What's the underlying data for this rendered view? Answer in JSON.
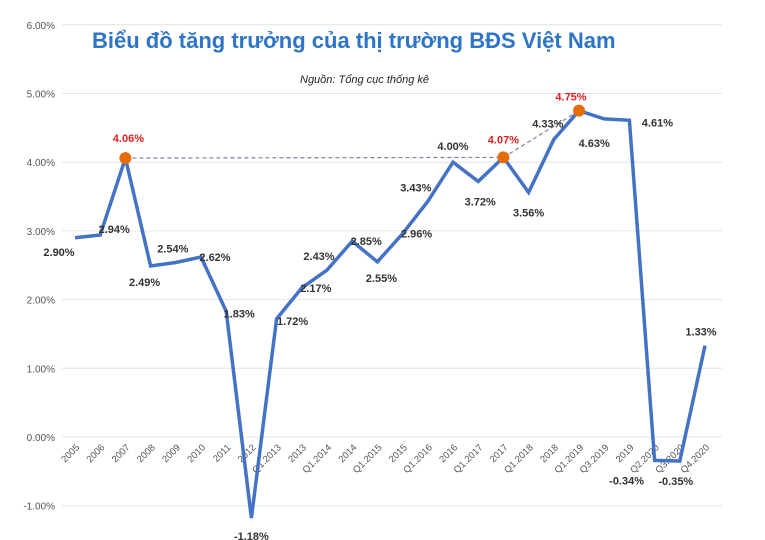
{
  "chart_data": {
    "type": "line",
    "title": "Biểu đồ tăng trưởng của thị trường BĐS Việt Nam",
    "subtitle": "Nguồn: Tổng cục thống kê",
    "xlabel": "",
    "ylabel": "",
    "ylim": [
      -1,
      6
    ],
    "yticks": [
      "-1.00%",
      "0.00%",
      "1.00%",
      "2.00%",
      "3.00%",
      "4.00%",
      "5.00%",
      "6.00%"
    ],
    "grid": true,
    "categories": [
      "2005",
      "2006",
      "2007",
      "2008",
      "2009",
      "2010",
      "2011",
      "2012",
      "Q1.2013",
      "2013",
      "Q1.2014",
      "2014",
      "Q1.2015",
      "2015",
      "Q1.2016",
      "2016",
      "Q1.2017",
      "2017",
      "Q1.2018",
      "2018",
      "Q1.2019",
      "Q3.2019",
      "2019",
      "Q2.2020",
      "Q3.2020",
      "Q4.2020"
    ],
    "values": [
      2.9,
      2.94,
      4.06,
      2.49,
      2.54,
      2.62,
      1.83,
      -1.18,
      1.72,
      2.17,
      2.43,
      2.85,
      2.55,
      2.96,
      3.43,
      4.0,
      3.72,
      4.07,
      3.56,
      4.33,
      4.75,
      4.63,
      4.61,
      -0.34,
      -0.35,
      1.33
    ],
    "data_labels": [
      "2.90%",
      "2.94%",
      "4.06%",
      "2.49%",
      "2.54%",
      "2.62%",
      "1.83%",
      "-1.18%",
      "1.72%",
      "2.17%",
      "2.43%",
      "2.85%",
      "2.55%",
      "2.96%",
      "3.43%",
      "4.00%",
      "3.72%",
      "4.07%",
      "3.56%",
      "4.33%",
      "4.75%",
      "4.63%",
      "4.61%",
      "-0.34%",
      "-0.35%",
      "1.33%"
    ],
    "highlighted_categories": [
      "2007",
      "2017",
      "Q1.2019"
    ],
    "colors": {
      "line": "#4472C4",
      "title": "#2E75C6",
      "highlight_marker": "#E46C0A",
      "highlight_label": "#E02020",
      "label": "#333333",
      "grid": "#E4E4E4",
      "dashed": "#7F7F9F"
    }
  }
}
